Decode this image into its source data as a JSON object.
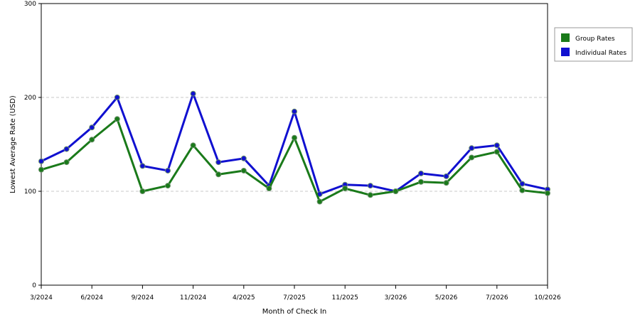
{
  "chart_data": {
    "type": "line",
    "xlabel": "Month of Check In",
    "ylabel": "Lowest Average Rate (USD)",
    "ylim": [
      0,
      300
    ],
    "yticks": [
      0,
      100,
      200,
      300
    ],
    "grid": "horizontal dashed",
    "legend_position": "right",
    "x_tick_labels": [
      "3/2024",
      "6/2024",
      "9/2024",
      "11/2024",
      "4/2025",
      "7/2025",
      "11/2025",
      "3/2026",
      "5/2026",
      "7/2026",
      "10/2026"
    ],
    "x_tick_indices": [
      0,
      2,
      4,
      6,
      8,
      10,
      12,
      14,
      16,
      18,
      20
    ],
    "series": [
      {
        "name": "Group Rates",
        "color": "#1a7a1a",
        "values": [
          123,
          131,
          155,
          177,
          100,
          106,
          149,
          118,
          122,
          103,
          157,
          89,
          103,
          96,
          100,
          110,
          109,
          136,
          142,
          101,
          98
        ]
      },
      {
        "name": "Individual Rates",
        "color": "#1010d0",
        "values": [
          132,
          145,
          168,
          200,
          127,
          122,
          204,
          131,
          135,
          106,
          185,
          97,
          107,
          106,
          100,
          119,
          116,
          146,
          149,
          108,
          102
        ]
      }
    ]
  }
}
